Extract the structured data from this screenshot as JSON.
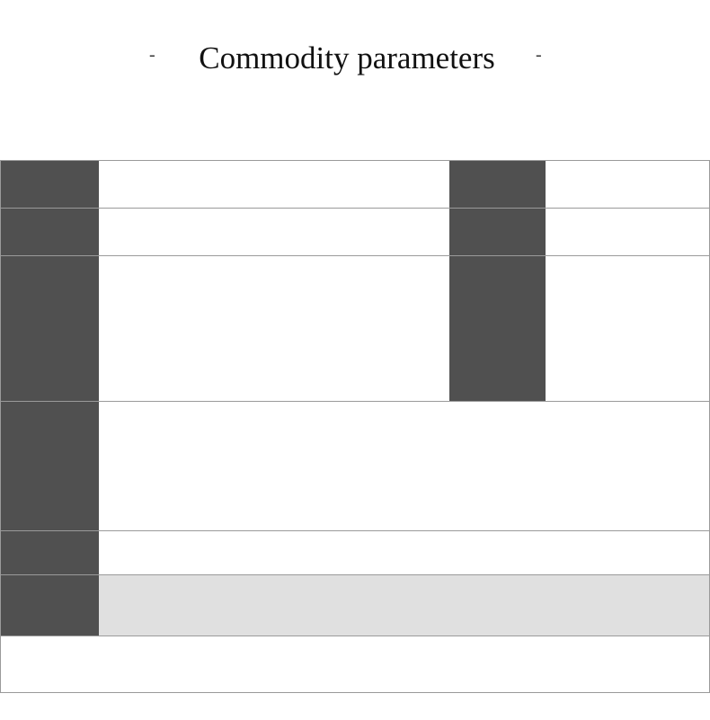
{
  "header": {
    "left_mark": "-",
    "title": "Commodity parameters",
    "right_mark": "-"
  }
}
